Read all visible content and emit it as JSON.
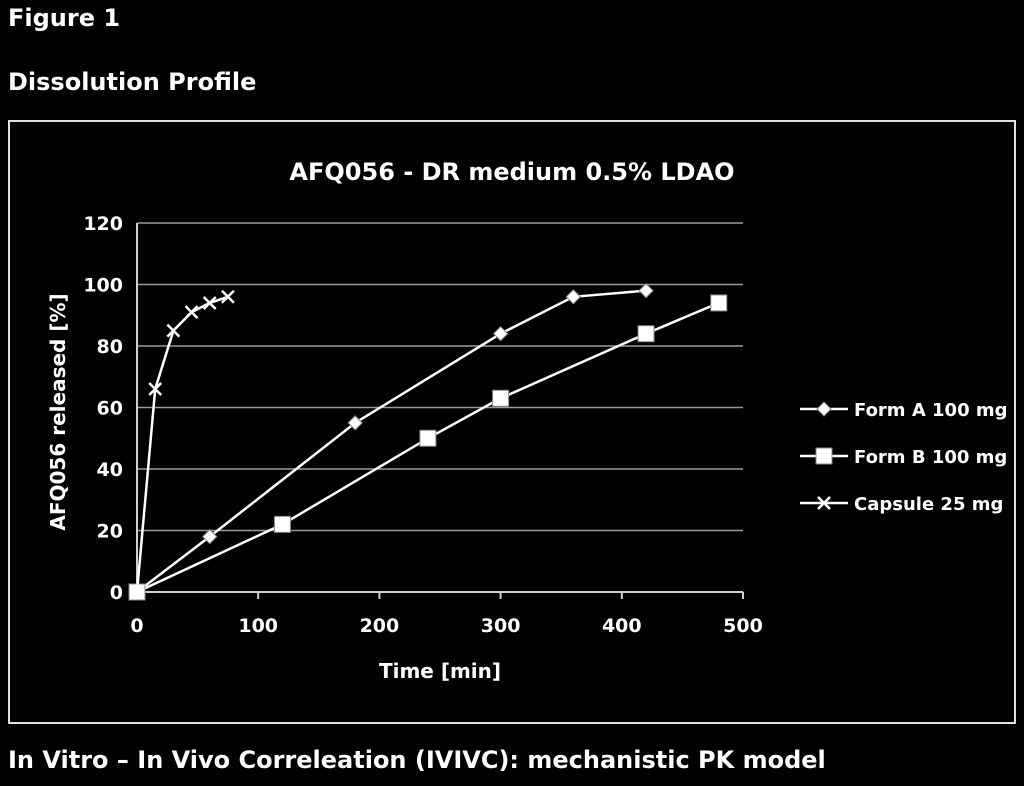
{
  "figure_label": "Figure 1",
  "section_title": "Dissolution Profile",
  "footer_heading": "In Vitro – In Vivo Correleation (IVIVC): mechanistic PK model",
  "chart_data": {
    "type": "line",
    "title": "AFQ056 - DR medium 0.5% LDAO",
    "xlabel": "Time [min]",
    "ylabel": "AFQ056 released [%]",
    "xlim": [
      0,
      500
    ],
    "ylim": [
      0,
      120
    ],
    "xticks": [
      0,
      100,
      200,
      300,
      400,
      500
    ],
    "yticks": [
      0,
      20,
      40,
      60,
      80,
      100,
      120
    ],
    "grid": "horizontal",
    "legend_position": "right",
    "series": [
      {
        "name": "Form A 100 mg",
        "marker": "diamond",
        "color": "#ffffff",
        "x": [
          0,
          60,
          180,
          300,
          360,
          420
        ],
        "y": [
          0,
          18,
          55,
          84,
          96,
          98
        ]
      },
      {
        "name": "Form B 100 mg",
        "marker": "square",
        "color": "#ffffff",
        "x": [
          0,
          120,
          240,
          300,
          420,
          480
        ],
        "y": [
          0,
          22,
          50,
          63,
          84,
          94
        ]
      },
      {
        "name": "Capsule 25 mg",
        "marker": "x",
        "color": "#ffffff",
        "x": [
          0,
          15,
          30,
          45,
          60,
          75
        ],
        "y": [
          0,
          66,
          85,
          91,
          94,
          96
        ]
      }
    ]
  }
}
